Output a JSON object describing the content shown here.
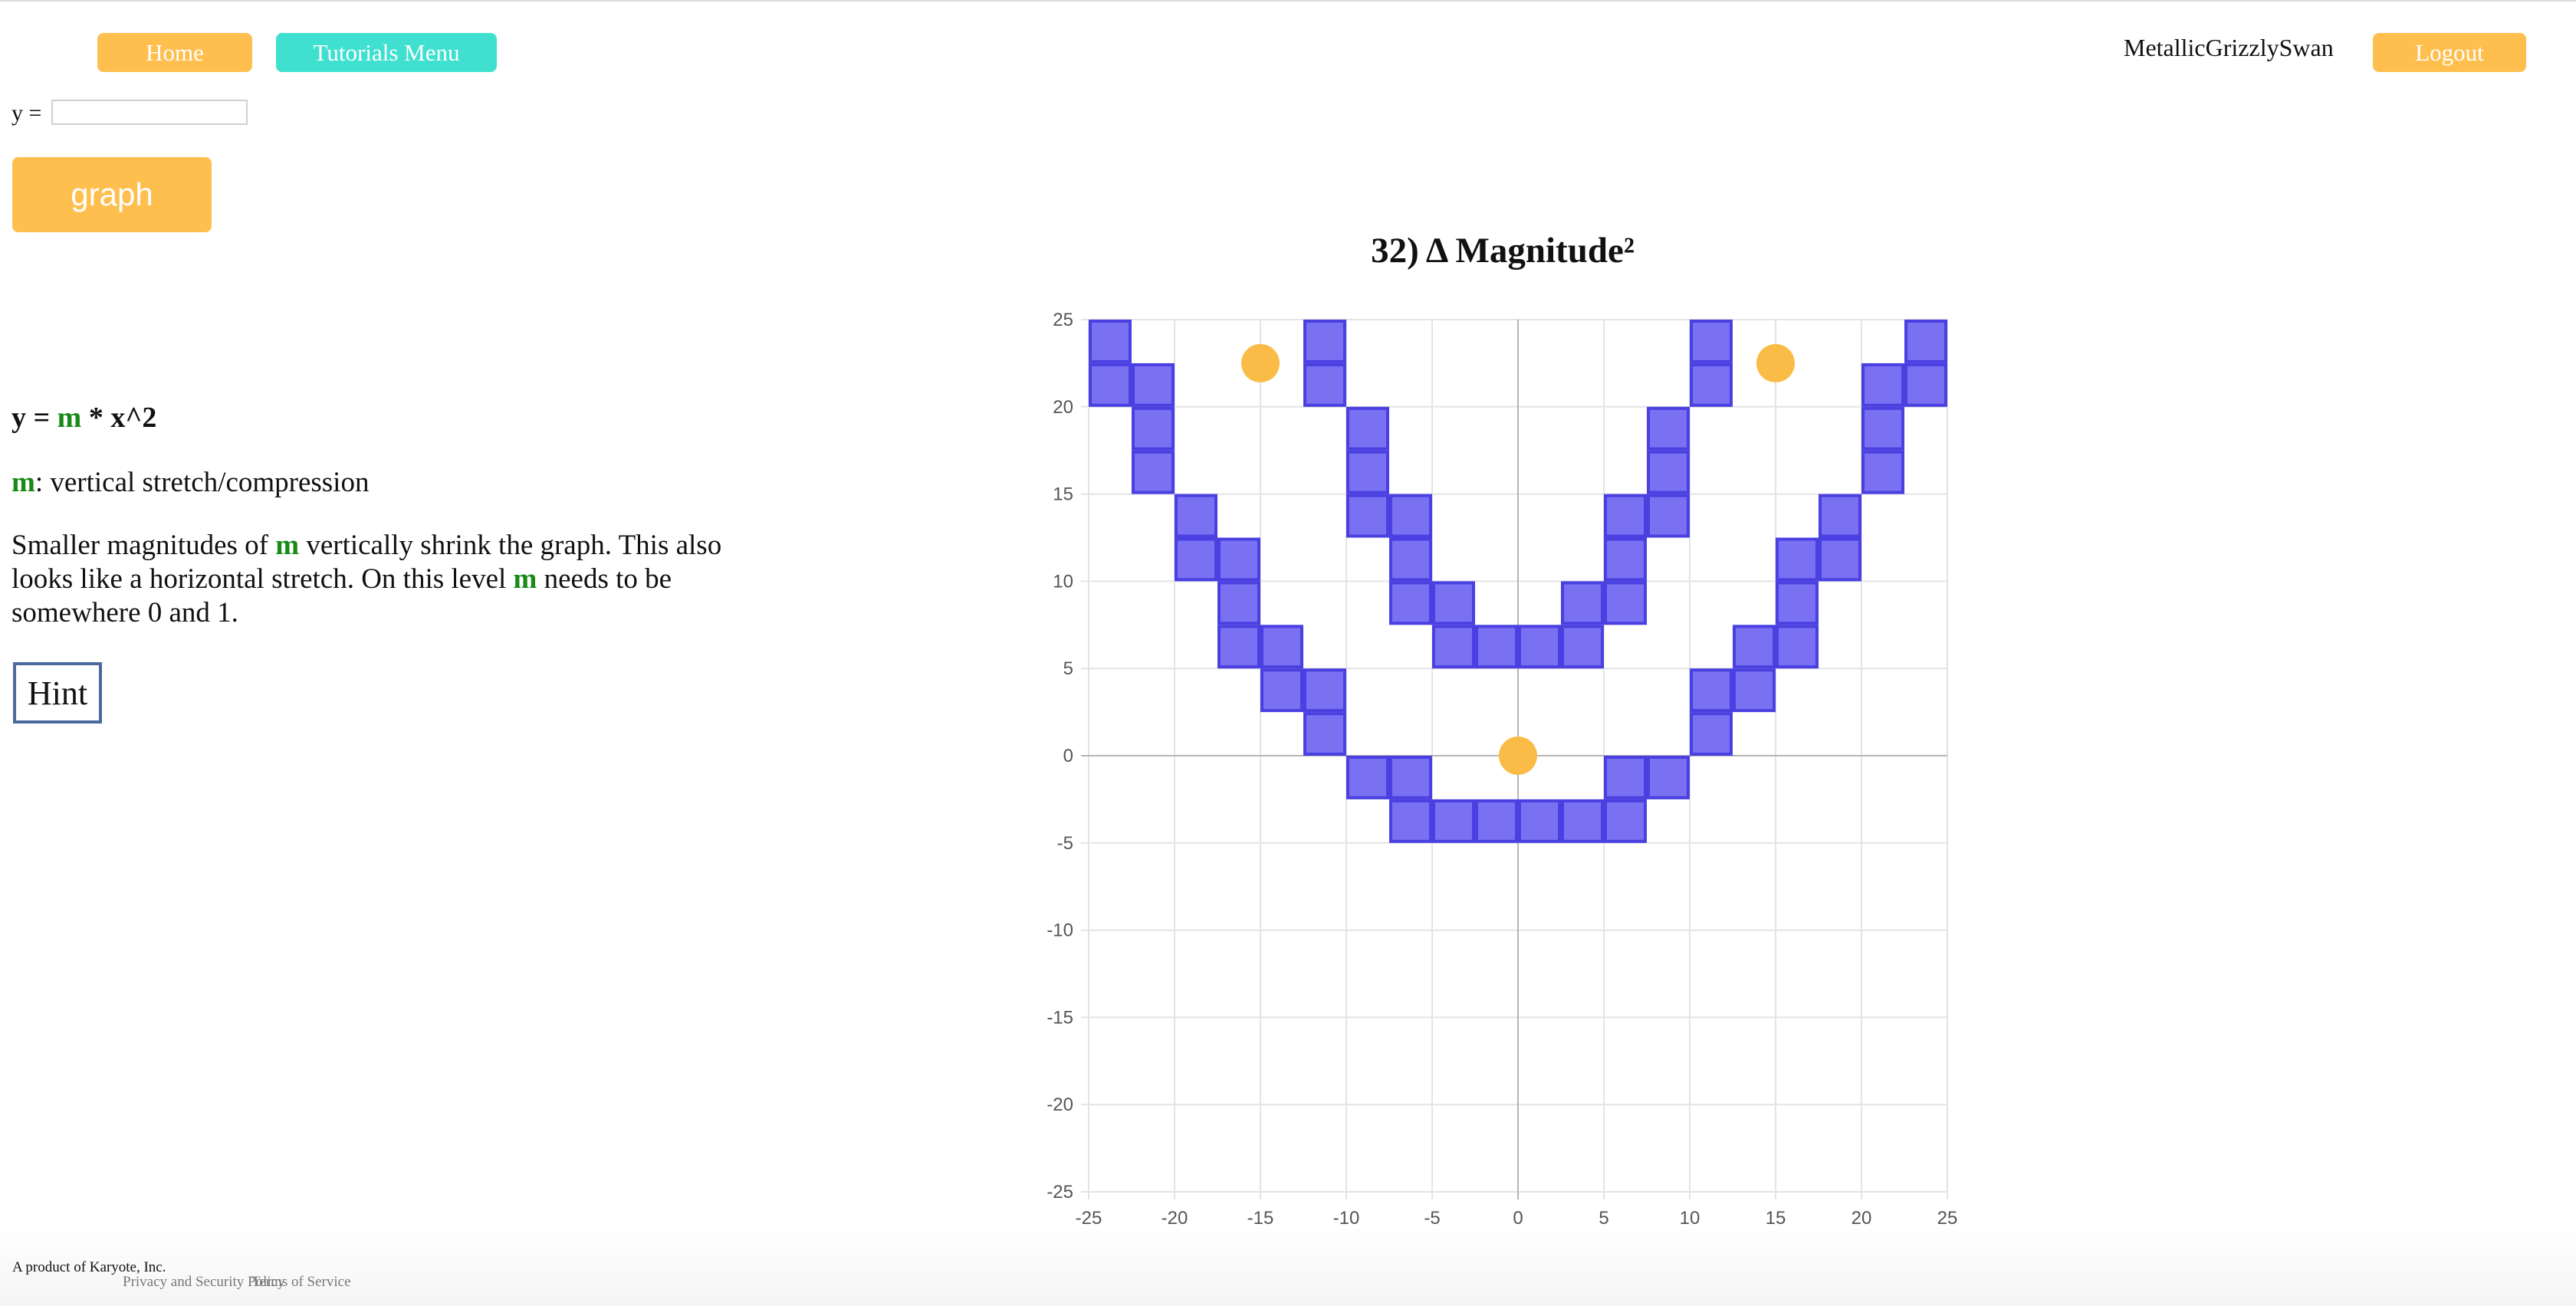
{
  "nav": {
    "home_label": "Home",
    "tutorials_label": "Tutorials Menu",
    "username": "MetallicGrizzlySwan",
    "logout_label": "Logout"
  },
  "equation_input": {
    "label": "y =",
    "value": "",
    "placeholder": ""
  },
  "graph_button_label": "graph",
  "lesson": {
    "formula_prefix": "y = ",
    "formula_param": "m",
    "formula_suffix": " * x^2",
    "param_name": "m",
    "param_desc": ": vertical stretch/compression",
    "desc_1": "Smaller magnitudes of ",
    "desc_m1": "m",
    "desc_2": " vertically shrink the graph. This also looks like a horizontal stretch. On this level ",
    "desc_m2": "m",
    "desc_3": " needs to be somewhere 0 and 1.",
    "hint_label": "Hint"
  },
  "chart_title": "32) Δ Magnitude²",
  "footer": {
    "company": "A product of Karyote, Inc.",
    "privacy": "Privacy and Security Policy",
    "terms": "Terms of Service"
  },
  "colors": {
    "accent_orange": "#ffbf4e",
    "accent_teal": "#3fe0d0",
    "block_fill": "#7a70f2",
    "block_stroke": "#4a3fe0",
    "target_fill": "#fbbb47",
    "param_green": "#178a17"
  },
  "chart_data": {
    "type": "scatter",
    "xlim": [
      -25,
      25
    ],
    "ylim": [
      -25,
      25
    ],
    "x_ticks": [
      -25,
      -20,
      -15,
      -10,
      -5,
      0,
      5,
      10,
      15,
      20,
      25
    ],
    "y_ticks": [
      25,
      20,
      15,
      10,
      5,
      0,
      -5,
      -10,
      -15,
      -20,
      -25
    ],
    "grid": true,
    "block_size": 2.5,
    "blocks": [
      [
        -25,
        22.5
      ],
      [
        -25,
        20
      ],
      [
        -22.5,
        20
      ],
      [
        -22.5,
        17.5
      ],
      [
        -22.5,
        15
      ],
      [
        -20,
        12.5
      ],
      [
        -20,
        10
      ],
      [
        -17.5,
        10
      ],
      [
        -17.5,
        7.5
      ],
      [
        -17.5,
        5
      ],
      [
        -15,
        5
      ],
      [
        -15,
        2.5
      ],
      [
        -12.5,
        2.5
      ],
      [
        -12.5,
        0
      ],
      [
        -10,
        -2.5
      ],
      [
        -7.5,
        -2.5
      ],
      [
        -7.5,
        -5
      ],
      [
        -5,
        -5
      ],
      [
        -2.5,
        -5
      ],
      [
        0,
        -5
      ],
      [
        2.5,
        -5
      ],
      [
        5,
        -5
      ],
      [
        5,
        -2.5
      ],
      [
        7.5,
        -2.5
      ],
      [
        10,
        2.5
      ],
      [
        10,
        0
      ],
      [
        12.5,
        2.5
      ],
      [
        12.5,
        5
      ],
      [
        15,
        5
      ],
      [
        15,
        7.5
      ],
      [
        15,
        10
      ],
      [
        17.5,
        12.5
      ],
      [
        17.5,
        10
      ],
      [
        20,
        15
      ],
      [
        20,
        17.5
      ],
      [
        20,
        20
      ],
      [
        22.5,
        20
      ],
      [
        22.5,
        22.5
      ],
      [
        -12.5,
        22.5
      ],
      [
        -12.5,
        20
      ],
      [
        -10,
        17.5
      ],
      [
        -10,
        15
      ],
      [
        -10,
        12.5
      ],
      [
        -7.5,
        12.5
      ],
      [
        -7.5,
        10
      ],
      [
        -7.5,
        7.5
      ],
      [
        -5,
        7.5
      ],
      [
        -5,
        5
      ],
      [
        -2.5,
        5
      ],
      [
        0,
        5
      ],
      [
        2.5,
        5
      ],
      [
        2.5,
        7.5
      ],
      [
        5,
        7.5
      ],
      [
        5,
        10
      ],
      [
        5,
        12.5
      ],
      [
        7.5,
        12.5
      ],
      [
        7.5,
        15
      ],
      [
        7.5,
        17.5
      ],
      [
        10,
        20
      ],
      [
        10,
        22.5
      ]
    ],
    "targets": [
      [
        -15,
        22.5
      ],
      [
        15,
        22.5
      ],
      [
        0,
        0
      ]
    ]
  }
}
